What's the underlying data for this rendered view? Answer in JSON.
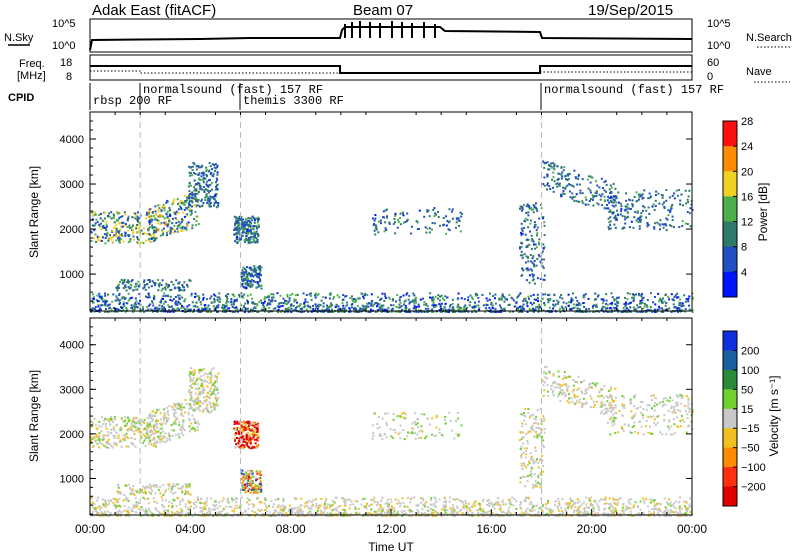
{
  "header": {
    "title": "Adak East (fitACF)",
    "beam": "Beam 07",
    "date": "19/Sep/2015"
  },
  "nsky_panel": {
    "left_label": "N.Sky",
    "right_label": "N.Search",
    "left_ticks": [
      "10^5",
      "10^0"
    ],
    "right_ticks": [
      "10^5",
      "10^0"
    ]
  },
  "freq_panel": {
    "left_label_line1": "Freq.",
    "left_label_line2": "[MHz]",
    "right_label": "Nave",
    "left_ticks": [
      "18",
      "8"
    ],
    "right_ticks": [
      "60",
      "0"
    ]
  },
  "cpid": {
    "label": "CPID",
    "segments": [
      {
        "text": "rbsp 200 RF",
        "start_hour": 0
      },
      {
        "text": "normalsound (fast) 157 RF",
        "start_hour": 2
      },
      {
        "text": "themis 3300 RF",
        "start_hour": 6
      },
      {
        "text": "normalsound (fast) 157 RF",
        "start_hour": 18
      }
    ]
  },
  "x_axis": {
    "label": "Time UT",
    "tick_labels": [
      "00:00",
      "04:00",
      "08:00",
      "12:00",
      "16:00",
      "20:00",
      "00:00"
    ],
    "range_hours": [
      0,
      24
    ]
  },
  "chart_data": [
    {
      "type": "heatmap",
      "title": "",
      "ylabel": "Slant Range [km]",
      "ylim": [
        180,
        4600
      ],
      "y_ticks": [
        "1000",
        "2000",
        "3000",
        "4000"
      ],
      "colorbar_label": "Power [dB]",
      "colorbar_ticks": [
        "4",
        "8",
        "12",
        "16",
        "20",
        "24",
        "28"
      ],
      "colorbar_range": [
        0,
        30
      ],
      "colorbar_colors": [
        "#0014ff",
        "#1f4fc0",
        "#2f7a6a",
        "#4bb04b",
        "#f0d020",
        "#ff8c00",
        "#ff1010"
      ]
    },
    {
      "type": "heatmap",
      "title": "",
      "ylabel": "Slant Range [km]",
      "ylim": [
        180,
        4600
      ],
      "y_ticks": [
        "1000",
        "2000",
        "3000",
        "4000"
      ],
      "colorbar_label": "Velocity [m s⁻¹]",
      "colorbar_ticks": [
        "200",
        "100",
        "50",
        "15",
        "−15",
        "−50",
        "−100",
        "−200"
      ],
      "colorbar_range": [
        -250,
        250
      ],
      "colorbar_colors": [
        "#1030e0",
        "#1a60a0",
        "#2a8a3a",
        "#70d030",
        "#c8c8c8",
        "#f0c020",
        "#ff8c00",
        "#ff3010",
        "#e00000"
      ]
    }
  ]
}
